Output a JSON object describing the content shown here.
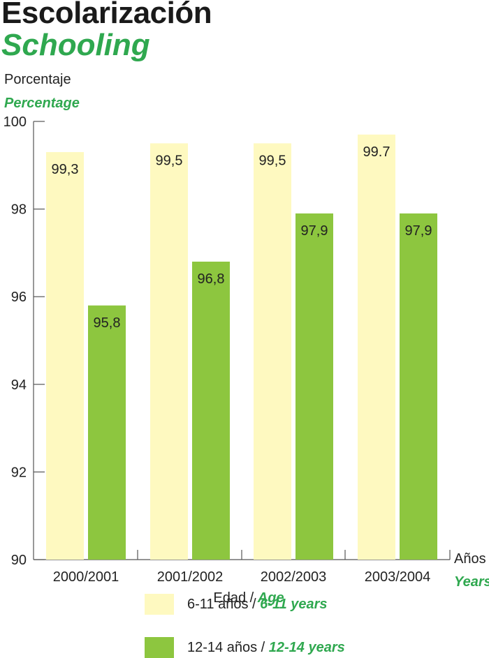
{
  "header": {
    "title": "Escolarización",
    "subtitle": "Schooling"
  },
  "axis": {
    "ylabel": "Porcentaje",
    "ylabel_en": "Percentage",
    "xlabel": "Edad",
    "xlabel_sep": " / ",
    "xlabel_en": "Age",
    "unit": "Años",
    "unit_en": "Years"
  },
  "legend": [
    {
      "label": "6-11 años",
      "sep": " / ",
      "label_en": "6-11 years",
      "color": "#fef9c0"
    },
    {
      "label": "12-14 años",
      "sep": " / ",
      "label_en": "12-14 years",
      "color": "#8dc63f"
    }
  ],
  "colors": {
    "accent_green_text": "#2fa84f",
    "axis": "#555555"
  },
  "chart_data": {
    "type": "bar",
    "categories": [
      "2000/2001",
      "2001/2002",
      "2002/2003",
      "2003/2004"
    ],
    "series": [
      {
        "name": "6-11 años / 6-11 years",
        "values": [
          99.3,
          99.5,
          99.5,
          99.7
        ],
        "labels": [
          "99,3",
          "99,5",
          "99,5",
          "99.7"
        ],
        "color": "#fef9c0"
      },
      {
        "name": "12-14 años / 12-14 years",
        "values": [
          95.8,
          96.8,
          97.9,
          97.9
        ],
        "labels": [
          "95,8",
          "96,8",
          "97,9",
          "97,9"
        ],
        "color": "#8dc63f"
      }
    ],
    "title": "Escolarización",
    "subtitle": "Schooling",
    "xlabel": "Edad / Age",
    "ylabel": "Porcentaje / Percentage",
    "ylim": [
      90,
      100
    ],
    "yticks": [
      90,
      92,
      94,
      96,
      98,
      100
    ],
    "grid": false,
    "legend_position": "bottom"
  }
}
